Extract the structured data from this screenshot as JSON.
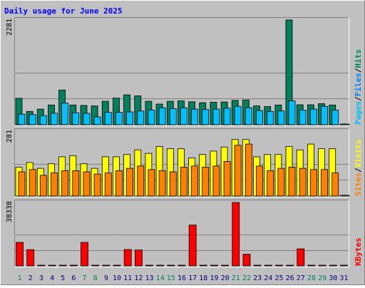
{
  "chart_data": {
    "title": "Daily usage for June 2025",
    "type": "bar",
    "categories": [
      "1",
      "2",
      "3",
      "4",
      "5",
      "6",
      "7",
      "8",
      "9",
      "10",
      "11",
      "12",
      "13",
      "14",
      "15",
      "16",
      "17",
      "18",
      "19",
      "20",
      "21",
      "22",
      "23",
      "24",
      "25",
      "26",
      "27",
      "28",
      "29",
      "30",
      "31"
    ],
    "weekend_days": [
      1,
      7,
      8,
      14,
      15,
      21,
      22,
      28,
      29
    ],
    "panels": [
      {
        "id": "hits",
        "ymax": 2281,
        "ymax_label": "2281",
        "legend": [
          "Pages",
          "/",
          "Files",
          "/",
          "Hits"
        ],
        "series": [
          {
            "name": "Hits",
            "color": "#00805c",
            "values": [
              575,
              290,
              340,
              430,
              755,
              430,
              420,
              410,
              510,
              580,
              650,
              630,
              510,
              450,
              510,
              520,
              500,
              480,
              490,
              495,
              530,
              540,
              410,
              395,
              430,
              2281,
              435,
              435,
              460,
              430,
              0
            ]
          },
          {
            "name": "Files",
            "color": "#00c0ff",
            "values": [
              230,
              220,
              200,
              250,
              470,
              260,
              250,
              170,
              270,
              270,
              280,
              300,
              320,
              370,
              350,
              370,
              340,
              330,
              340,
              360,
              400,
              370,
              310,
              290,
              300,
              520,
              320,
              340,
              400,
              320,
              0
            ]
          },
          {
            "name": "Pages",
            "color": "#00c0ff",
            "values": [
              0,
              0,
              0,
              0,
              0,
              0,
              0,
              0,
              0,
              0,
              0,
              0,
              0,
              0,
              0,
              0,
              0,
              0,
              0,
              0,
              0,
              0,
              0,
              0,
              0,
              0,
              0,
              0,
              0,
              0,
              0
            ]
          }
        ]
      },
      {
        "id": "visits",
        "ymax": 281,
        "ymax_label": "281",
        "legend": [
          "Sites",
          "/",
          "Visits"
        ],
        "series": [
          {
            "name": "Visits",
            "color": "#ffff00",
            "values": [
              125,
              145,
              120,
              140,
              170,
              175,
              140,
              120,
              170,
              170,
              180,
              200,
              185,
              215,
              205,
              205,
              165,
              180,
              195,
              212,
              245,
              245,
              170,
              180,
              180,
              215,
              200,
              225,
              205,
              205,
              0
            ]
          },
          {
            "name": "Sites",
            "color": "#ff8000",
            "values": [
              105,
              115,
              90,
              100,
              110,
              110,
              105,
              95,
              100,
              110,
              120,
              130,
              115,
              110,
              105,
              125,
              130,
              125,
              130,
              150,
              220,
              225,
              130,
              110,
              120,
              125,
              120,
              115,
              115,
              100,
              0
            ]
          }
        ]
      },
      {
        "id": "kbytes",
        "ymax": 38338,
        "ymax_label": "38338",
        "legend": [
          "KBytes"
        ],
        "series": [
          {
            "name": "KBytes",
            "color": "#ff0000",
            "values": [
              14200,
              9800,
              0,
              0,
              0,
              0,
              14200,
              0,
              0,
              0,
              9900,
              9600,
              0,
              0,
              0,
              0,
              24700,
              0,
              0,
              0,
              38338,
              7000,
              0,
              0,
              0,
              0,
              10300,
              0,
              0,
              0,
              0
            ]
          }
        ]
      }
    ]
  },
  "colors": {
    "background": "#c0c0c0",
    "title": "#0000ff",
    "weekday_label": "#000080",
    "weekend_label": "#00805c",
    "grid": "#808080"
  }
}
